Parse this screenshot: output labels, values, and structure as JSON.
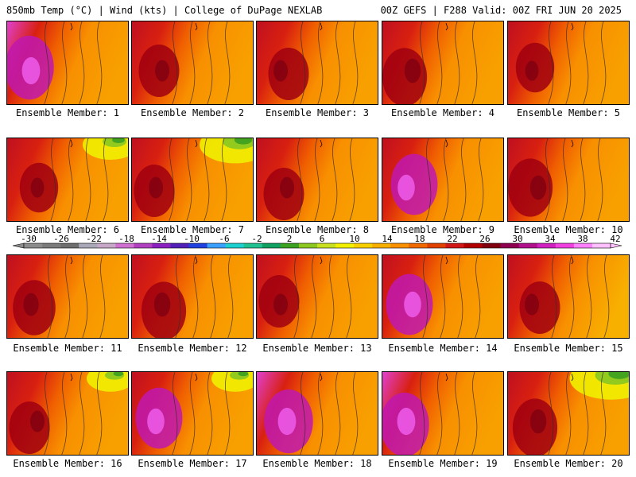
{
  "header": {
    "left": "850mb Temp (°C) | Wind (kts) | College of DuPage NEXLAB",
    "right": "00Z GEFS | F288 Valid: 00Z FRI JUN 20 2025"
  },
  "caption_prefix": "Ensemble Member: ",
  "members": [
    {
      "number": "1",
      "hot": 0.95,
      "warm": 0.5,
      "green": 0.0
    },
    {
      "number": "2",
      "hot": 0.75,
      "warm": 0.6,
      "green": 0.0
    },
    {
      "number": "3",
      "hot": 0.75,
      "warm": 0.55,
      "green": 0.0
    },
    {
      "number": "4",
      "hot": 0.85,
      "warm": 0.55,
      "green": 0.0
    },
    {
      "number": "5",
      "hot": 0.7,
      "warm": 0.55,
      "green": 0.0
    },
    {
      "number": "6",
      "hot": 0.7,
      "warm": 0.5,
      "green": 0.5
    },
    {
      "number": "7",
      "hot": 0.75,
      "warm": 0.55,
      "green": 0.7
    },
    {
      "number": "8",
      "hot": 0.75,
      "warm": 0.6,
      "green": 0.0
    },
    {
      "number": "9",
      "hot": 0.9,
      "warm": 0.6,
      "green": 0.0
    },
    {
      "number": "10",
      "hot": 0.85,
      "warm": 0.55,
      "green": 0.0
    },
    {
      "number": "11",
      "hot": 0.8,
      "warm": 0.5,
      "green": 0.0
    },
    {
      "number": "12",
      "hot": 0.85,
      "warm": 0.45,
      "green": 0.0
    },
    {
      "number": "13",
      "hot": 0.75,
      "warm": 0.55,
      "green": 0.0
    },
    {
      "number": "14",
      "hot": 0.9,
      "warm": 0.6,
      "green": 0.0
    },
    {
      "number": "15",
      "hot": 0.75,
      "warm": 0.65,
      "green": 0.0
    },
    {
      "number": "16",
      "hot": 0.75,
      "warm": 0.45,
      "green": 0.4
    },
    {
      "number": "17",
      "hot": 0.9,
      "warm": 0.5,
      "green": 0.4
    },
    {
      "number": "18",
      "hot": 0.95,
      "warm": 0.55,
      "green": 0.0
    },
    {
      "number": "19",
      "hot": 0.95,
      "warm": 0.55,
      "green": 0.0
    },
    {
      "number": "20",
      "hot": 0.85,
      "warm": 0.5,
      "green": 0.85
    }
  ],
  "colorbar": {
    "labels": [
      "-30",
      "-26",
      "-22",
      "-18",
      "-14",
      "-10",
      "-6",
      "-2",
      "2",
      "6",
      "10",
      "14",
      "18",
      "22",
      "26",
      "30",
      "34",
      "38",
      "42"
    ],
    "colors": [
      "#8c8c8c",
      "#7b7b7b",
      "#6e6e6e",
      "#a8a8b8",
      "#c8a8c8",
      "#d070d0",
      "#b040c0",
      "#8a20c0",
      "#5020b8",
      "#2040e0",
      "#3aa0ff",
      "#1cd0d0",
      "#20c090",
      "#10a060",
      "#3ca020",
      "#8cc820",
      "#c8e020",
      "#f0f000",
      "#f8d000",
      "#f8b000",
      "#f89000",
      "#f06800",
      "#e04000",
      "#d01818",
      "#b00000",
      "#800010",
      "#900050",
      "#b0108c",
      "#d020c0",
      "#f040e0",
      "#ff80ff",
      "#ffc0ff"
    ]
  }
}
